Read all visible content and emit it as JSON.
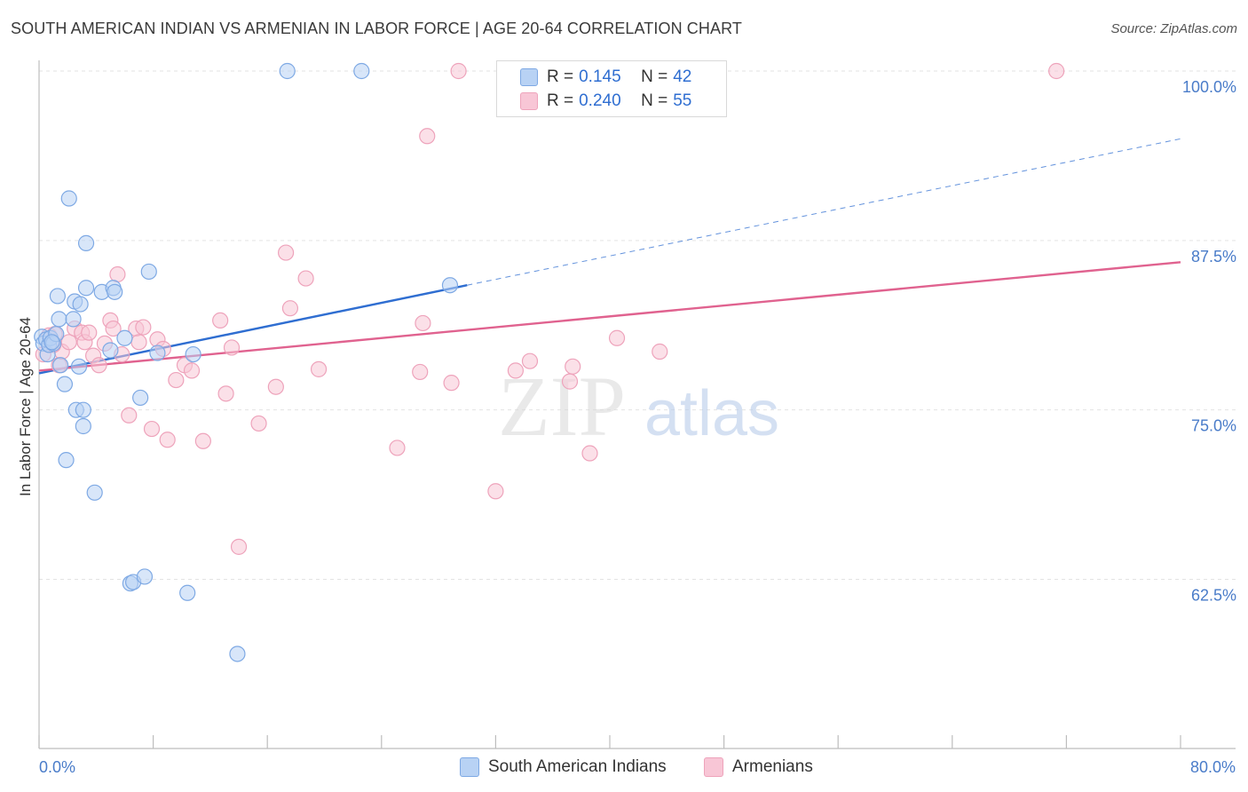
{
  "title": "SOUTH AMERICAN INDIAN VS ARMENIAN IN LABOR FORCE | AGE 20-64 CORRELATION CHART",
  "source": "Source: ZipAtlas.com",
  "watermark": {
    "zip": "ZIP",
    "atlas": "atlas"
  },
  "legend": {
    "r_label": "R =",
    "n_label": "N =",
    "rows": [
      {
        "r": "0.145",
        "n": "42",
        "swatch_fill": "#b8d2f4",
        "swatch_stroke": "#7ea9e4"
      },
      {
        "r": "0.240",
        "n": "55",
        "swatch_fill": "#f8c6d6",
        "swatch_stroke": "#eea3bb"
      }
    ]
  },
  "bottom_legend": [
    {
      "label": "South American Indians",
      "fill": "#b8d2f4",
      "stroke": "#7ea9e4"
    },
    {
      "label": "Armenians",
      "fill": "#f8c6d6",
      "stroke": "#eea3bb"
    }
  ],
  "chart_data": {
    "type": "scatter",
    "title": "SOUTH AMERICAN INDIAN VS ARMENIAN IN LABOR FORCE | AGE 20-64 CORRELATION CHART",
    "xlabel": "",
    "ylabel": "In Labor Force | Age 20-64",
    "xlim": [
      0,
      80
    ],
    "ylim": [
      52,
      101
    ],
    "x_tick_labels": [
      {
        "value": 0,
        "label": "0.0%"
      },
      {
        "value": 80,
        "label": "80.0%"
      }
    ],
    "y_tick_labels": [
      {
        "value": 100,
        "label": "100.0%"
      },
      {
        "value": 87.5,
        "label": "87.5%"
      },
      {
        "value": 75,
        "label": "75.0%"
      },
      {
        "value": 62.5,
        "label": "62.5%"
      }
    ],
    "gridlines": [
      100,
      87.5,
      75,
      62.5
    ],
    "colors": {
      "blue": "#2f6ed1",
      "pink": "#e0628f",
      "blue_fill": "#b8d2f4",
      "pink_fill": "#f8c6d6"
    },
    "series": [
      {
        "name": "South American Indians",
        "color": "#2f6ed1",
        "r": 0.145,
        "n": 42,
        "trend": {
          "x_start": 0,
          "y_start": 77.7,
          "x_solid_end": 30,
          "y_solid_end": 84.2,
          "x_end": 80,
          "y_end": 95.0
        },
        "points": [
          [
            0.2,
            80.4
          ],
          [
            0.3,
            79.9
          ],
          [
            0.5,
            80.2
          ],
          [
            0.6,
            79.1
          ],
          [
            0.7,
            79.8
          ],
          [
            0.8,
            80.3
          ],
          [
            1.0,
            79.9
          ],
          [
            1.2,
            80.6
          ],
          [
            1.3,
            83.4
          ],
          [
            1.4,
            81.7
          ],
          [
            1.5,
            78.3
          ],
          [
            1.8,
            76.9
          ],
          [
            1.9,
            71.3
          ],
          [
            2.1,
            90.6
          ],
          [
            2.4,
            81.7
          ],
          [
            2.5,
            83.0
          ],
          [
            2.6,
            75.0
          ],
          [
            2.8,
            78.2
          ],
          [
            2.9,
            82.8
          ],
          [
            3.1,
            73.8
          ],
          [
            3.1,
            75.0
          ],
          [
            3.3,
            87.3
          ],
          [
            3.3,
            84.0
          ],
          [
            3.9,
            68.9
          ],
          [
            4.4,
            83.7
          ],
          [
            5.0,
            79.4
          ],
          [
            5.2,
            84.0
          ],
          [
            5.3,
            83.7
          ],
          [
            6.0,
            80.3
          ],
          [
            6.4,
            62.2
          ],
          [
            6.6,
            62.3
          ],
          [
            7.1,
            75.9
          ],
          [
            7.4,
            62.7
          ],
          [
            7.7,
            85.2
          ],
          [
            8.3,
            79.2
          ],
          [
            10.4,
            61.5
          ],
          [
            10.8,
            79.1
          ],
          [
            13.9,
            57.0
          ],
          [
            17.4,
            100.0
          ],
          [
            22.6,
            100.0
          ],
          [
            28.8,
            84.2
          ],
          [
            0.9,
            80.0
          ]
        ]
      },
      {
        "name": "Armenians",
        "color": "#e0628f",
        "r": 0.24,
        "n": 55,
        "trend": {
          "x_start": 0,
          "y_start": 77.9,
          "x_solid_end": 80,
          "y_solid_end": 85.9,
          "x_end": 80,
          "y_end": 85.9
        },
        "points": [
          [
            0.3,
            79.1
          ],
          [
            0.7,
            80.5
          ],
          [
            1.1,
            80.6
          ],
          [
            1.4,
            78.3
          ],
          [
            1.6,
            79.3
          ],
          [
            2.1,
            80.0
          ],
          [
            2.5,
            81.0
          ],
          [
            3.0,
            80.7
          ],
          [
            3.2,
            80.0
          ],
          [
            3.5,
            80.7
          ],
          [
            3.8,
            79.0
          ],
          [
            4.2,
            78.3
          ],
          [
            4.6,
            79.9
          ],
          [
            5.0,
            81.6
          ],
          [
            5.2,
            81.0
          ],
          [
            5.5,
            85.0
          ],
          [
            5.8,
            79.1
          ],
          [
            6.3,
            74.6
          ],
          [
            6.8,
            81.0
          ],
          [
            7.0,
            80.0
          ],
          [
            7.3,
            81.1
          ],
          [
            7.9,
            73.6
          ],
          [
            8.3,
            80.2
          ],
          [
            8.7,
            79.5
          ],
          [
            9.0,
            72.8
          ],
          [
            9.6,
            77.2
          ],
          [
            10.2,
            78.3
          ],
          [
            10.7,
            77.9
          ],
          [
            11.5,
            72.7
          ],
          [
            12.7,
            81.6
          ],
          [
            13.1,
            76.2
          ],
          [
            13.5,
            79.6
          ],
          [
            14.0,
            64.9
          ],
          [
            15.4,
            74.0
          ],
          [
            16.6,
            76.7
          ],
          [
            17.3,
            86.6
          ],
          [
            17.6,
            82.5
          ],
          [
            18.7,
            84.7
          ],
          [
            19.6,
            78.0
          ],
          [
            25.1,
            72.2
          ],
          [
            26.7,
            77.8
          ],
          [
            26.9,
            81.4
          ],
          [
            27.2,
            95.2
          ],
          [
            28.9,
            77.0
          ],
          [
            29.4,
            100.0
          ],
          [
            32.0,
            69.0
          ],
          [
            33.4,
            77.9
          ],
          [
            34.4,
            78.6
          ],
          [
            37.2,
            77.1
          ],
          [
            37.4,
            78.2
          ],
          [
            38.6,
            71.8
          ],
          [
            40.5,
            80.3
          ],
          [
            43.5,
            79.3
          ],
          [
            71.3,
            100.0
          ],
          [
            1.0,
            79.8
          ]
        ]
      }
    ]
  }
}
